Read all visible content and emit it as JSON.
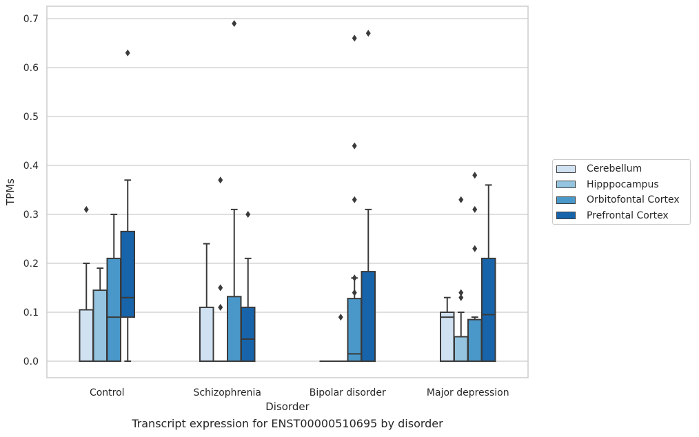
{
  "chart_data": {
    "type": "boxplot",
    "title": "",
    "caption": "Transcript expression for ENST00000510695 by disorder",
    "xlabel": "Disorder",
    "ylabel": "TPMs",
    "ylim": [
      -0.035,
      0.725
    ],
    "yticks": [
      "0.0",
      "0.1",
      "0.2",
      "0.3",
      "0.4",
      "0.5",
      "0.6",
      "0.7"
    ],
    "categories": [
      "Control",
      "Schizophrenia",
      "Bipolar disorder",
      "Major depression"
    ],
    "grid": "horizontal",
    "legend_position": "right",
    "series": [
      {
        "name": "Cerebellum",
        "color": "#d0e1f2",
        "boxes": [
          {
            "q1": 0.0,
            "median": 0.0,
            "q3": 0.105,
            "whisker_low": 0.0,
            "whisker_high": 0.2,
            "outliers": [
              0.31
            ]
          },
          {
            "q1": 0.0,
            "median": 0.0,
            "q3": 0.11,
            "whisker_low": 0.0,
            "whisker_high": 0.24,
            "outliers": []
          },
          {
            "q1": 0.0,
            "median": 0.0,
            "q3": 0.0,
            "whisker_low": 0.0,
            "whisker_high": 0.0,
            "outliers": []
          },
          {
            "q1": 0.0,
            "median": 0.09,
            "q3": 0.1,
            "whisker_low": 0.0,
            "whisker_high": 0.13,
            "outliers": []
          }
        ]
      },
      {
        "name": "Hipppocampus",
        "color": "#94c4df",
        "boxes": [
          {
            "q1": 0.0,
            "median": 0.0,
            "q3": 0.145,
            "whisker_low": 0.0,
            "whisker_high": 0.19,
            "outliers": []
          },
          {
            "q1": 0.0,
            "median": 0.0,
            "q3": 0.0,
            "whisker_low": 0.0,
            "whisker_high": 0.0,
            "outliers": [
              0.37,
              0.15,
              0.11
            ]
          },
          {
            "q1": 0.0,
            "median": 0.0,
            "q3": 0.0,
            "whisker_low": 0.0,
            "whisker_high": 0.0,
            "outliers": [
              0.09
            ]
          },
          {
            "q1": 0.0,
            "median": 0.05,
            "q3": 0.05,
            "whisker_low": 0.0,
            "whisker_high": 0.1,
            "outliers": [
              0.33,
              0.14,
              0.13
            ]
          }
        ]
      },
      {
        "name": "Orbitofontal Cortex",
        "color": "#4a98c9",
        "boxes": [
          {
            "q1": 0.0,
            "median": 0.09,
            "q3": 0.21,
            "whisker_low": 0.0,
            "whisker_high": 0.3,
            "outliers": []
          },
          {
            "q1": 0.0,
            "median": 0.0,
            "q3": 0.132,
            "whisker_low": 0.0,
            "whisker_high": 0.31,
            "outliers": [
              0.69
            ]
          },
          {
            "q1": 0.0,
            "median": 0.015,
            "q3": 0.128,
            "whisker_low": 0.0,
            "whisker_high": 0.17,
            "outliers": [
              0.66,
              0.44,
              0.33,
              0.17,
              0.14
            ]
          },
          {
            "q1": 0.0,
            "median": 0.0,
            "q3": 0.085,
            "whisker_low": 0.0,
            "whisker_high": 0.09,
            "outliers": [
              0.38,
              0.31,
              0.23
            ]
          }
        ]
      },
      {
        "name": "Prefrontal Cortex",
        "color": "#1764ab",
        "boxes": [
          {
            "q1": 0.09,
            "median": 0.13,
            "q3": 0.265,
            "whisker_low": 0.0,
            "whisker_high": 0.37,
            "outliers": [
              0.63
            ]
          },
          {
            "q1": 0.0,
            "median": 0.045,
            "q3": 0.11,
            "whisker_low": 0.0,
            "whisker_high": 0.21,
            "outliers": [
              0.3
            ]
          },
          {
            "q1": 0.0,
            "median": 0.0,
            "q3": 0.183,
            "whisker_low": 0.0,
            "whisker_high": 0.31,
            "outliers": [
              0.67
            ]
          },
          {
            "q1": 0.0,
            "median": 0.095,
            "q3": 0.21,
            "whisker_low": 0.0,
            "whisker_high": 0.36,
            "outliers": []
          }
        ]
      }
    ]
  }
}
